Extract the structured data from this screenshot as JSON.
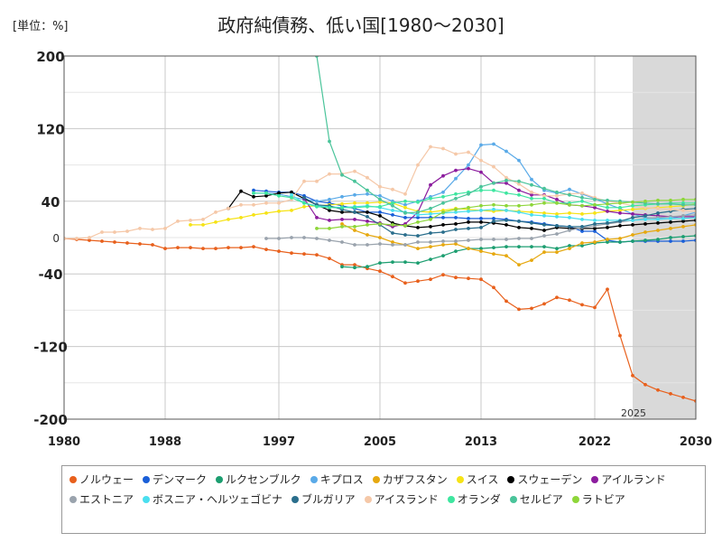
{
  "unit_label": "[単位：%]",
  "chart_data": {
    "type": "line",
    "title": "政府純債務、低い国[1980～2030]",
    "xlabel": "",
    "ylabel": "",
    "xlim": [
      1980,
      2030
    ],
    "ylim": [
      -200,
      200
    ],
    "x_ticks": [
      1980,
      1988,
      1997,
      2005,
      2013,
      2022,
      2030
    ],
    "y_ticks": [
      200,
      120,
      40,
      -40,
      -120,
      -200
    ],
    "zero_label": "0",
    "forecast_start": 2025,
    "forecast_label": "2025",
    "grid": true,
    "legend_position": "bottom",
    "series": [
      {
        "name": "ノルウェー",
        "color": "#e8601c",
        "x0": 1980,
        "values": [
          -1,
          -2,
          -3,
          -4,
          -5,
          -6,
          -7,
          -8,
          -12,
          -11,
          -11,
          -12,
          -12,
          -11,
          -11,
          -10,
          -13,
          -15,
          -17,
          -18,
          -19,
          -23,
          -30,
          -30,
          -34,
          -37,
          -43,
          -50,
          -48,
          -46,
          -41,
          -44,
          -45,
          -46,
          -55,
          -70,
          -79,
          -78,
          -73,
          -66,
          -69,
          -74,
          -77,
          -57,
          -108,
          -152,
          -162,
          -168,
          -172,
          -176,
          -180,
          -183
        ]
      },
      {
        "name": "デンマーク",
        "color": "#1a5fd8",
        "x0": 1995,
        "values": [
          52,
          51,
          50,
          50,
          46,
          40,
          38,
          35,
          32,
          28,
          28,
          25,
          22,
          22,
          22,
          22,
          22,
          21,
          21,
          21,
          20,
          18,
          17,
          15,
          13,
          12,
          7,
          7,
          -3,
          -5,
          -4,
          -4,
          -4,
          -4,
          -4,
          -3
        ]
      },
      {
        "name": "ルクセンブルク",
        "color": "#1c9e70",
        "x0": 2002,
        "values": [
          -32,
          -33,
          -32,
          -28,
          -27,
          -27,
          -28,
          -24,
          -20,
          -15,
          -12,
          -12,
          -11,
          -10,
          -10,
          -10,
          -10,
          -12,
          -9,
          -9,
          -6,
          -5,
          -5,
          -4,
          -3,
          -2,
          0,
          1,
          2,
          3
        ]
      },
      {
        "name": "キプロス",
        "color": "#5aaae8",
        "x0": 1995,
        "values": [
          49,
          49,
          48,
          45,
          42,
          40,
          42,
          45,
          47,
          48,
          46,
          40,
          36,
          40,
          45,
          50,
          65,
          80,
          102,
          103,
          95,
          85,
          64,
          52,
          49,
          53,
          48,
          43,
          37,
          32,
          26,
          22,
          21,
          21,
          24,
          28
        ]
      },
      {
        "name": "カザフスタン",
        "color": "#e6a80f",
        "x0": 2002,
        "values": [
          15,
          8,
          3,
          0,
          -5,
          -8,
          -12,
          -10,
          -8,
          -7,
          -12,
          -15,
          -18,
          -20,
          -30,
          -25,
          -16,
          -16,
          -12,
          -6,
          -5,
          -2,
          -1,
          3,
          6,
          8,
          10,
          12,
          14,
          16
        ]
      },
      {
        "name": "スイス",
        "color": "#f6e316",
        "x0": 1990,
        "values": [
          14,
          14,
          17,
          20,
          22,
          25,
          27,
          29,
          30,
          34,
          35,
          36,
          37,
          38,
          38,
          39,
          38,
          33,
          29,
          28,
          30,
          32,
          31,
          30,
          29,
          30,
          29,
          28,
          27,
          26,
          27,
          26,
          27,
          29,
          30,
          31,
          32,
          33,
          34,
          35,
          37
        ]
      },
      {
        "name": "スウェーデン",
        "color": "#000000",
        "x0": 1993,
        "values": [
          32,
          51,
          45,
          46,
          49,
          50,
          43,
          36,
          30,
          28,
          28,
          28,
          24,
          16,
          13,
          11,
          12,
          14,
          15,
          17,
          17,
          16,
          14,
          11,
          10,
          8,
          11,
          10,
          10,
          10,
          11,
          13,
          14,
          15,
          16,
          17,
          18,
          19
        ]
      },
      {
        "name": "アイルランド",
        "color": "#8c1c9e",
        "x0": 1999,
        "values": [
          43,
          22,
          19,
          20,
          20,
          18,
          16,
          12,
          15,
          28,
          58,
          68,
          74,
          76,
          72,
          60,
          60,
          52,
          47,
          47,
          42,
          36,
          35,
          33,
          29,
          27,
          26,
          25,
          24,
          23,
          23,
          23
        ]
      },
      {
        "name": "エストニア",
        "color": "#9aa3ad",
        "x0": 1996,
        "values": [
          -1,
          -1,
          0,
          0,
          -1,
          -3,
          -5,
          -8,
          -8,
          -7,
          -8,
          -8,
          -5,
          -5,
          -4,
          -4,
          -3,
          -2,
          -2,
          -2,
          -1,
          -1,
          2,
          4,
          8,
          11,
          13,
          15,
          17,
          19,
          21,
          22,
          23,
          24,
          25
        ]
      },
      {
        "name": "ボスニア・ヘルツェゴビナ",
        "color": "#4adfef",
        "x0": 1998,
        "values": [
          47,
          38,
          35,
          34,
          33,
          34,
          35,
          33,
          30,
          28,
          25,
          26,
          27,
          28,
          29,
          30,
          31,
          30,
          28,
          25,
          24,
          23,
          22,
          20,
          19,
          19,
          19,
          19,
          20,
          20,
          21,
          21,
          22
        ]
      },
      {
        "name": "ブルガリア",
        "color": "#2a6e8c",
        "x0": 1999,
        "values": [
          44,
          36,
          35,
          31,
          28,
          23,
          14,
          5,
          3,
          2,
          5,
          6,
          9,
          10,
          11,
          18,
          19,
          18,
          16,
          14,
          13,
          12,
          12,
          15,
          16,
          18,
          22,
          24,
          27,
          29,
          31,
          32
        ]
      },
      {
        "name": "アイスランド",
        "color": "#f5c8a8",
        "x0": 1980,
        "values": [
          -1,
          -1,
          0,
          6,
          6,
          7,
          10,
          9,
          10,
          18,
          19,
          20,
          28,
          32,
          36,
          36,
          38,
          38,
          42,
          62,
          62,
          70,
          70,
          73,
          66,
          56,
          53,
          48,
          80,
          100,
          98,
          92,
          94,
          85,
          78,
          66,
          59,
          50,
          46,
          46,
          48,
          49,
          44,
          40,
          38,
          35,
          33,
          32,
          31,
          30,
          29
        ]
      },
      {
        "name": "オランダ",
        "color": "#3ee6a0",
        "x0": 1995,
        "values": [
          49,
          49,
          46,
          44,
          38,
          34,
          33,
          33,
          33,
          34,
          34,
          38,
          40,
          39,
          43,
          45,
          48,
          50,
          52,
          52,
          49,
          47,
          43,
          43,
          38,
          38,
          40,
          36,
          33,
          33,
          35,
          36,
          37,
          38,
          38,
          38
        ]
      },
      {
        "name": "セルビア",
        "color": "#4ac49a",
        "x0": 2000,
        "values": [
          200,
          106,
          69,
          62,
          52,
          42,
          35,
          27,
          28,
          32,
          38,
          43,
          48,
          56,
          60,
          63,
          62,
          58,
          54,
          50,
          47,
          44,
          42,
          41,
          40,
          39,
          38,
          37,
          37,
          36,
          36
        ]
      },
      {
        "name": "ラトビア",
        "color": "#8ed63a",
        "x0": 2000,
        "values": [
          10,
          10,
          12,
          12,
          14,
          15,
          14,
          13,
          17,
          20,
          28,
          31,
          33,
          35,
          36,
          35,
          35,
          36,
          38,
          38,
          36,
          35,
          36,
          37,
          38,
          39,
          40,
          41,
          41,
          42,
          42
        ]
      }
    ]
  }
}
